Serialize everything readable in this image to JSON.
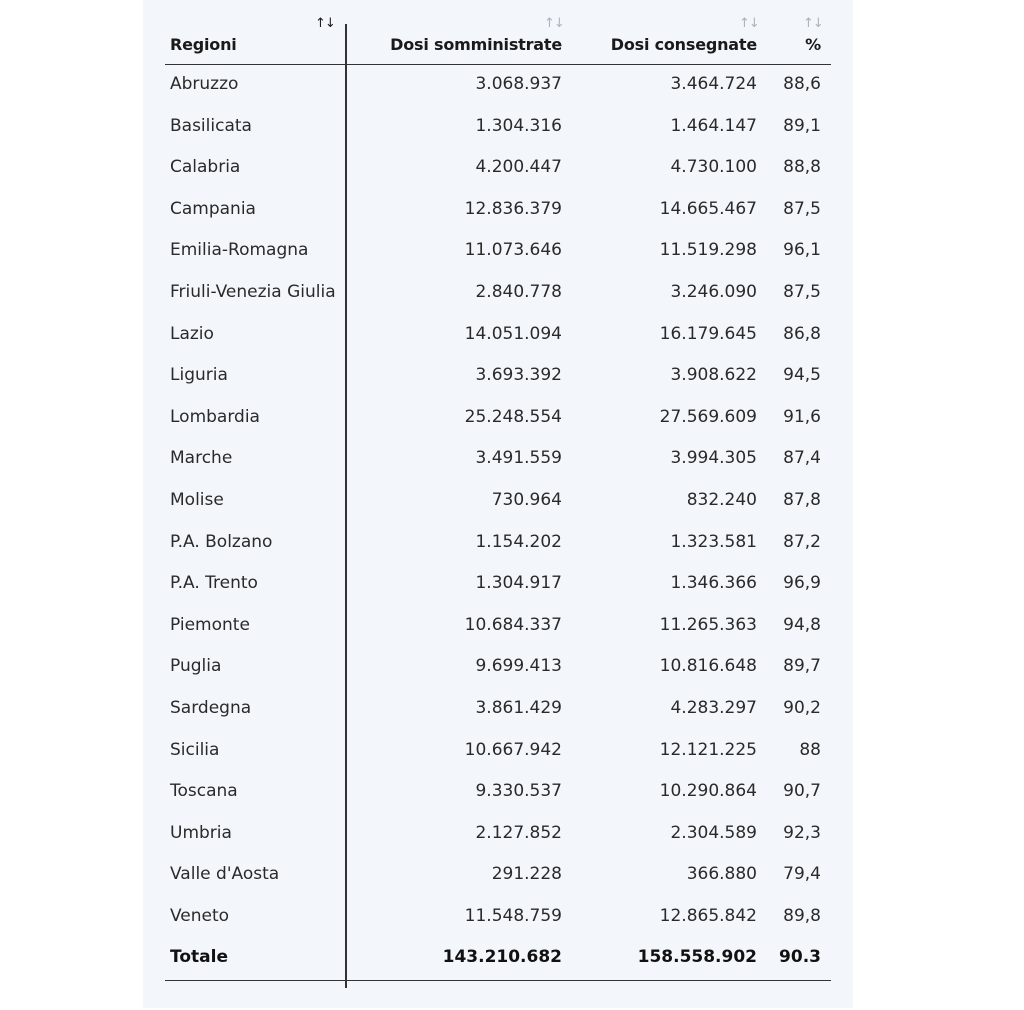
{
  "headers": {
    "region": "Regioni",
    "administered": "Dosi somministrate",
    "delivered": "Dosi consegnate",
    "percent": "%",
    "sort_glyph": "↑↓"
  },
  "rows": [
    {
      "region": "Abruzzo",
      "administered": "3.068.937",
      "delivered": "3.464.724",
      "percent": "88,6"
    },
    {
      "region": "Basilicata",
      "administered": "1.304.316",
      "delivered": "1.464.147",
      "percent": "89,1"
    },
    {
      "region": "Calabria",
      "administered": "4.200.447",
      "delivered": "4.730.100",
      "percent": "88,8"
    },
    {
      "region": "Campania",
      "administered": "12.836.379",
      "delivered": "14.665.467",
      "percent": "87,5"
    },
    {
      "region": "Emilia-Romagna",
      "administered": "11.073.646",
      "delivered": "11.519.298",
      "percent": "96,1"
    },
    {
      "region": "Friuli-Venezia Giulia",
      "administered": "2.840.778",
      "delivered": "3.246.090",
      "percent": "87,5"
    },
    {
      "region": "Lazio",
      "administered": "14.051.094",
      "delivered": "16.179.645",
      "percent": "86,8"
    },
    {
      "region": "Liguria",
      "administered": "3.693.392",
      "delivered": "3.908.622",
      "percent": "94,5"
    },
    {
      "region": "Lombardia",
      "administered": "25.248.554",
      "delivered": "27.569.609",
      "percent": "91,6"
    },
    {
      "region": "Marche",
      "administered": "3.491.559",
      "delivered": "3.994.305",
      "percent": "87,4"
    },
    {
      "region": "Molise",
      "administered": "730.964",
      "delivered": "832.240",
      "percent": "87,8"
    },
    {
      "region": "P.A. Bolzano",
      "administered": "1.154.202",
      "delivered": "1.323.581",
      "percent": "87,2"
    },
    {
      "region": "P.A. Trento",
      "administered": "1.304.917",
      "delivered": "1.346.366",
      "percent": "96,9"
    },
    {
      "region": "Piemonte",
      "administered": "10.684.337",
      "delivered": "11.265.363",
      "percent": "94,8"
    },
    {
      "region": "Puglia",
      "administered": "9.699.413",
      "delivered": "10.816.648",
      "percent": "89,7"
    },
    {
      "region": "Sardegna",
      "administered": "3.861.429",
      "delivered": "4.283.297",
      "percent": "90,2"
    },
    {
      "region": "Sicilia",
      "administered": "10.667.942",
      "delivered": "12.121.225",
      "percent": "88"
    },
    {
      "region": "Toscana",
      "administered": "9.330.537",
      "delivered": "10.290.864",
      "percent": "90,7"
    },
    {
      "region": "Umbria",
      "administered": "2.127.852",
      "delivered": "2.304.589",
      "percent": "92,3"
    },
    {
      "region": "Valle d'Aosta",
      "administered": "291.228",
      "delivered": "366.880",
      "percent": "79,4"
    },
    {
      "region": "Veneto",
      "administered": "11.548.759",
      "delivered": "12.865.842",
      "percent": "89,8"
    }
  ],
  "total": {
    "region": "Totale",
    "administered": "143.210.682",
    "delivered": "158.558.902",
    "percent": "90.3"
  },
  "colors": {
    "panel_bg": "#f3f7fb",
    "sort_active": "#1a1a1a",
    "sort_inactive": "#a9b4bf",
    "rule": "#333333"
  }
}
